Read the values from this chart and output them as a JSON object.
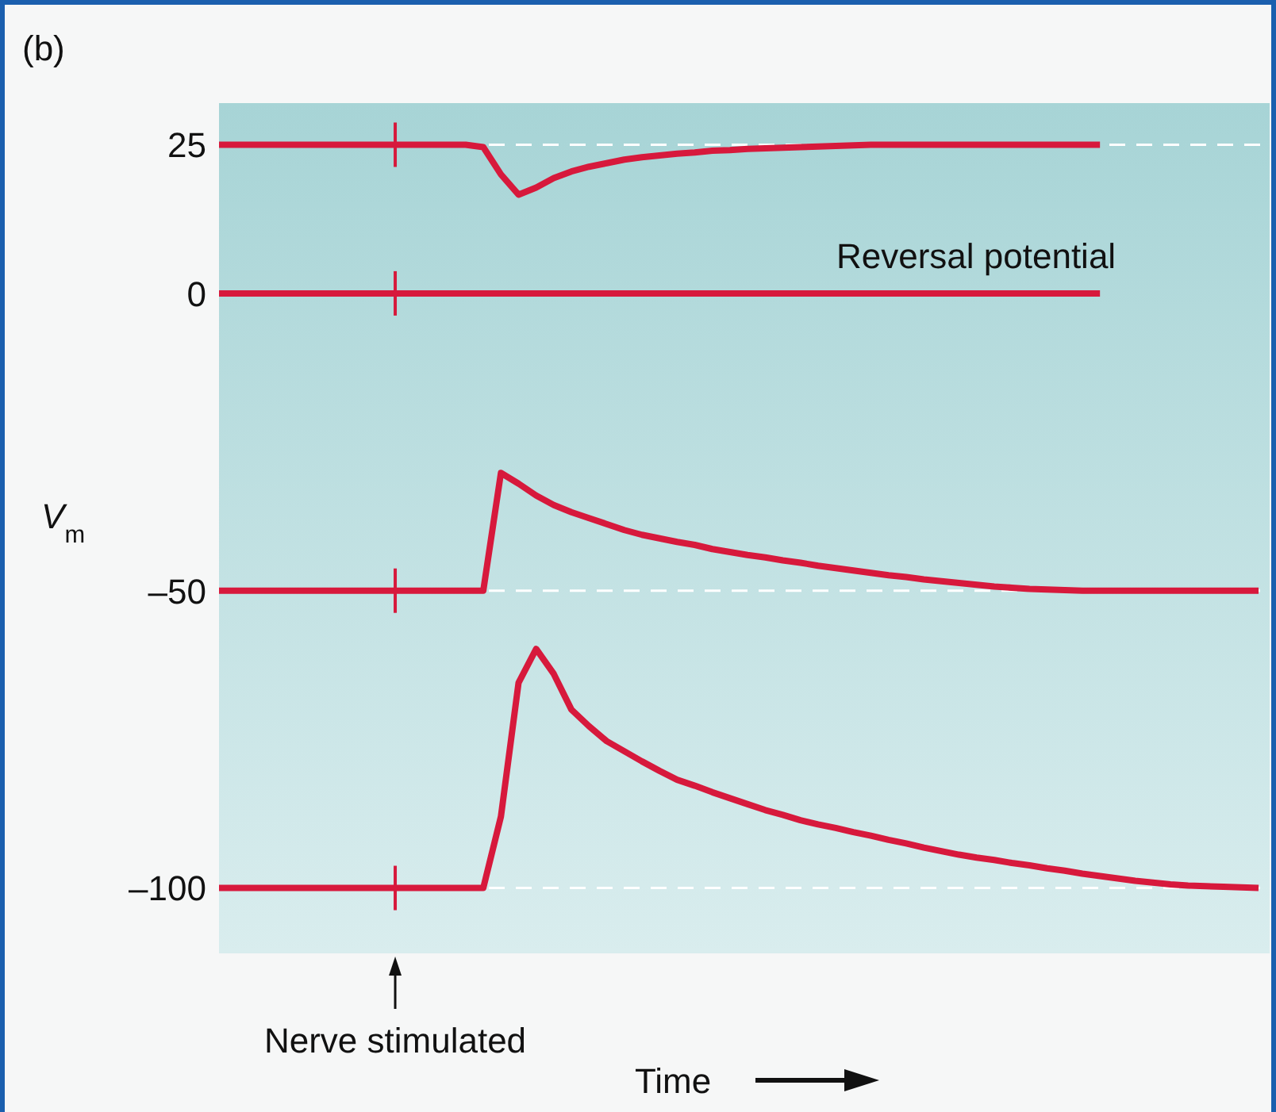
{
  "chart_data": {
    "type": "line",
    "title": "(b)",
    "xlabel": "Time",
    "ylabel": "V$_{m}$",
    "ylim": [
      -111,
      32
    ],
    "yticks": [
      {
        "value": 25,
        "label": "25"
      },
      {
        "value": 0,
        "label": "0"
      },
      {
        "value": -50,
        "label": "–50"
      },
      {
        "value": -100,
        "label": "–100"
      }
    ],
    "categories": [
      null,
      null,
      null,
      null,
      null,
      null,
      null,
      null,
      null,
      null,
      null,
      null,
      null,
      null,
      null,
      null,
      null,
      null,
      null,
      null,
      null,
      null,
      null,
      null,
      null,
      null,
      null,
      null,
      null,
      null,
      null,
      null,
      null,
      null,
      null,
      null,
      null,
      null,
      null,
      null,
      null,
      null,
      null,
      null,
      null,
      null,
      null,
      null,
      null,
      null,
      null,
      null,
      null,
      null,
      null,
      null,
      null,
      null,
      null,
      null
    ],
    "series": [
      {
        "color": "#d7193c",
        "values": [
          25,
          25,
          25,
          25,
          25,
          25,
          25,
          25,
          25,
          25,
          25,
          25,
          25,
          25,
          25,
          24.6,
          20,
          16.6,
          17.8,
          19.4,
          20.5,
          21.3,
          21.9,
          22.5,
          22.9,
          23.2,
          23.5,
          23.7,
          24,
          24.1,
          24.3,
          24.4,
          24.5,
          24.6,
          24.7,
          24.8,
          24.9,
          25,
          25,
          25,
          25,
          25,
          25,
          25,
          25,
          25,
          25,
          25,
          25,
          25,
          25,
          null,
          null,
          null,
          null,
          null,
          null,
          null,
          null,
          null
        ]
      },
      {
        "name": "Reversal potential",
        "color": "#d7193c",
        "values": [
          0,
          0,
          0,
          0,
          0,
          0,
          0,
          0,
          0,
          0,
          0,
          0,
          0,
          0,
          0,
          0,
          0,
          0,
          0,
          0,
          0,
          0,
          0,
          0,
          0,
          0,
          0,
          0,
          0,
          0,
          0,
          0,
          0,
          0,
          0,
          0,
          0,
          0,
          0,
          0,
          0,
          0,
          0,
          0,
          0,
          0,
          0,
          0,
          0,
          0,
          0,
          null,
          null,
          null,
          null,
          null,
          null,
          null,
          null,
          null
        ]
      },
      {
        "color": "#d7193c",
        "values": [
          -50,
          -50,
          -50,
          -50,
          -50,
          -50,
          -50,
          -50,
          -50,
          -50,
          -50,
          -50,
          -50,
          -50,
          -50,
          -50,
          -30.2,
          -32,
          -34,
          -35.6,
          -36.8,
          -37.8,
          -38.8,
          -39.8,
          -40.6,
          -41.2,
          -41.8,
          -42.3,
          -43,
          -43.5,
          -44,
          -44.4,
          -44.9,
          -45.3,
          -45.8,
          -46.2,
          -46.6,
          -47,
          -47.4,
          -47.7,
          -48.1,
          -48.4,
          -48.7,
          -49,
          -49.3,
          -49.5,
          -49.7,
          -49.8,
          -49.9,
          -50,
          -50,
          -50,
          -50,
          -50,
          -50,
          -50,
          -50,
          -50,
          -50,
          -50
        ]
      },
      {
        "color": "#d7193c",
        "values": [
          -100,
          -100,
          -100,
          -100,
          -100,
          -100,
          -100,
          -100,
          -100,
          -100,
          -100,
          -100,
          -100,
          -100,
          -100,
          -100,
          -88,
          -65.5,
          -59.8,
          -64,
          -70,
          -72.8,
          -75.3,
          -77,
          -78.7,
          -80.3,
          -81.8,
          -82.8,
          -83.9,
          -84.9,
          -85.9,
          -86.9,
          -87.7,
          -88.6,
          -89.3,
          -89.9,
          -90.6,
          -91.2,
          -91.9,
          -92.5,
          -93.2,
          -93.8,
          -94.4,
          -94.9,
          -95.3,
          -95.8,
          -96.2,
          -96.7,
          -97.1,
          -97.6,
          -98,
          -98.4,
          -98.8,
          -99.1,
          -99.4,
          -99.6,
          -99.7,
          -99.8,
          -99.9,
          -100
        ]
      }
    ],
    "ref_lines": [
      {
        "axis": "y",
        "value": 25,
        "color": "#ffffff",
        "line_style": "dashed"
      },
      {
        "axis": "y",
        "value": -50,
        "color": "#ffffff",
        "line_style": "dashed"
      },
      {
        "axis": "y",
        "value": -100,
        "color": "#ffffff",
        "line_style": "dashed"
      }
    ],
    "annotations": [
      "Nerve stimulated"
    ]
  }
}
